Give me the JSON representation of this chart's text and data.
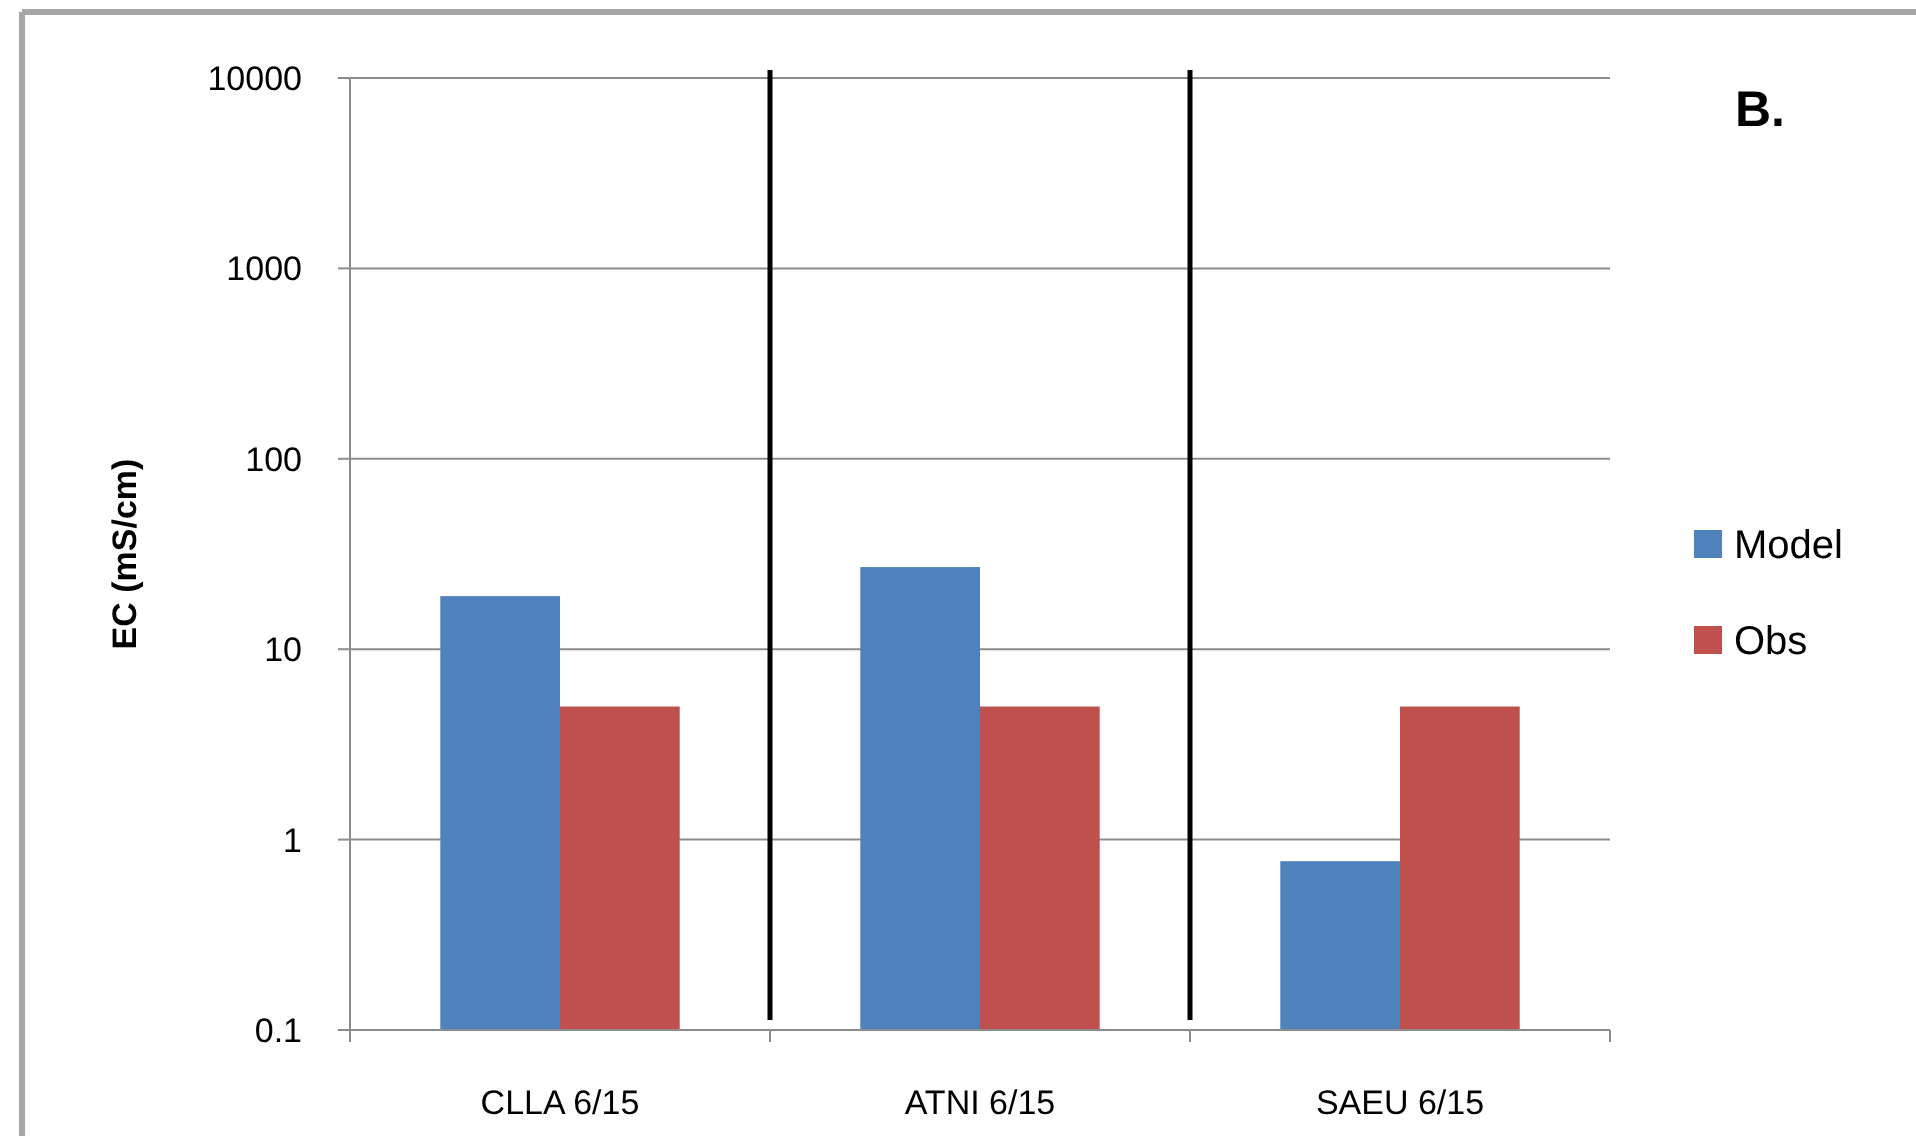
{
  "chart_data": {
    "type": "bar",
    "title": "B.",
    "ylabel": "EC (mS/cm)",
    "categories": [
      "CLLA 6/15",
      "ATNI 6/15",
      "SAEU 6/15"
    ],
    "series": [
      {
        "name": "Model",
        "color": "#4f81bd",
        "values": [
          19,
          27,
          0.77
        ]
      },
      {
        "name": "Obs",
        "color": "#c0504d",
        "values": [
          5,
          5,
          5
        ]
      }
    ],
    "log": "y",
    "ylim": [
      0.1,
      10000
    ],
    "yticks": [
      0.1,
      1,
      10,
      100,
      1000,
      10000
    ],
    "grid": "y",
    "legend": "right"
  }
}
